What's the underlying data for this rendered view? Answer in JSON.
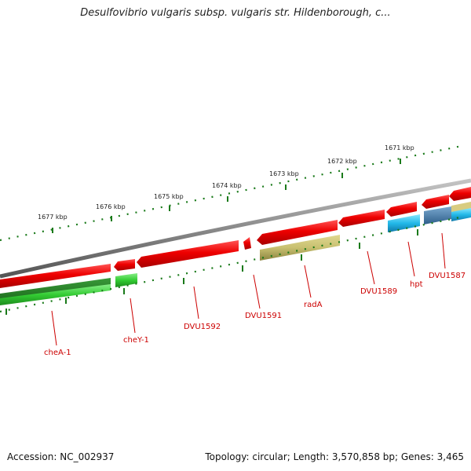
{
  "title": "Desulfovibrio vulgaris subsp. vulgaris str. Hildenborough, c...",
  "footer": {
    "accession": "Accession: NC_002937",
    "topology": "Topology: circular; Length: 3,570,858 bp; Genes: 3,465"
  },
  "colors": {
    "backbone": "#8a8a8a",
    "forward_gene": "#ee0000",
    "reverse_green": "#33bb33",
    "rada": "#c8c070",
    "hpt": "#22b8e8",
    "dvu1587": "#4a86b8",
    "label": "#cc0000",
    "tick": "#1a7a1a"
  },
  "ticks": [
    {
      "label": "1677 kbp"
    },
    {
      "label": "1676 kbp"
    },
    {
      "label": "1675 kbp"
    },
    {
      "label": "1674 kbp"
    },
    {
      "label": "1673 kbp"
    },
    {
      "label": "1672 kbp"
    },
    {
      "label": "1671 kbp"
    }
  ],
  "genes": [
    {
      "label": "cheA-1"
    },
    {
      "label": "cheY-1"
    },
    {
      "label": "DVU1592"
    },
    {
      "label": "DVU1591"
    },
    {
      "label": "radA"
    },
    {
      "label": "DVU1589"
    },
    {
      "label": "hpt"
    },
    {
      "label": "DVU1587"
    }
  ]
}
